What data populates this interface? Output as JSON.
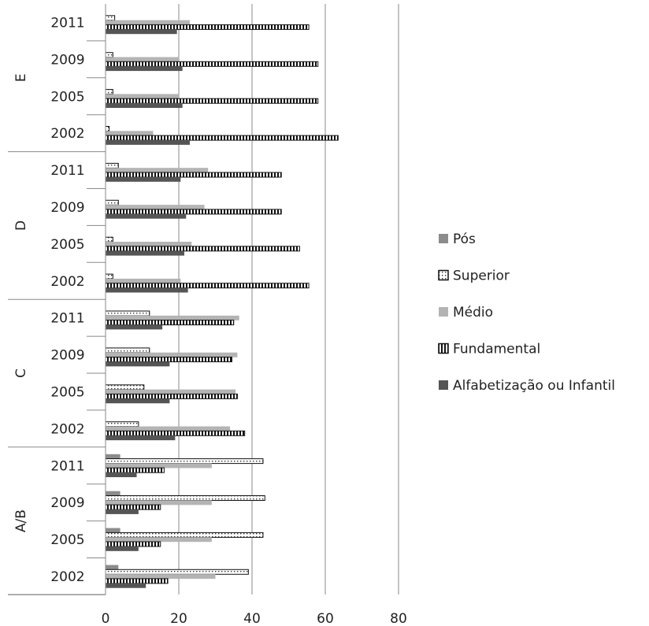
{
  "chart_data": {
    "type": "bar",
    "orientation": "horizontal",
    "groups": [
      {
        "label": "E",
        "years": [
          {
            "year": "2011",
            "values": [
              0,
              2.5,
              23,
              55.5,
              19.5
            ]
          },
          {
            "year": "2009",
            "values": [
              0,
              2,
              20,
              58,
              21
            ]
          },
          {
            "year": "2005",
            "values": [
              0,
              2,
              20,
              58,
              21
            ]
          },
          {
            "year": "2002",
            "values": [
              0,
              1,
              13,
              63.5,
              23
            ]
          }
        ]
      },
      {
        "label": "D",
        "years": [
          {
            "year": "2011",
            "values": [
              0,
              3.5,
              28,
              48,
              20.5
            ]
          },
          {
            "year": "2009",
            "values": [
              0,
              3.5,
              27,
              48,
              22
            ]
          },
          {
            "year": "2005",
            "values": [
              0,
              2,
              23.5,
              53,
              21.5
            ]
          },
          {
            "year": "2002",
            "values": [
              0,
              2,
              20.5,
              55.5,
              22.5
            ]
          }
        ]
      },
      {
        "label": "C",
        "years": [
          {
            "year": "2011",
            "values": [
              0,
              12,
              36.5,
              35,
              15.5
            ]
          },
          {
            "year": "2009",
            "values": [
              0,
              12,
              36,
              34.5,
              17.5
            ]
          },
          {
            "year": "2005",
            "values": [
              0,
              10.5,
              35.5,
              36,
              17.5
            ]
          },
          {
            "year": "2002",
            "values": [
              0,
              9,
              34,
              38,
              19
            ]
          }
        ]
      },
      {
        "label": "A/B",
        "years": [
          {
            "year": "2011",
            "values": [
              4,
              43,
              29,
              16,
              8.5
            ]
          },
          {
            "year": "2009",
            "values": [
              4,
              43.5,
              29,
              15,
              9
            ]
          },
          {
            "year": "2005",
            "values": [
              4,
              43,
              29,
              15,
              9
            ]
          },
          {
            "year": "2002",
            "values": [
              3.5,
              39,
              30,
              17,
              11
            ]
          }
        ]
      }
    ],
    "series": [
      {
        "name": "Pós",
        "color": "#8c8c8c",
        "pattern": "solid"
      },
      {
        "name": "Superior",
        "color": "#ffffff",
        "pattern": "dots"
      },
      {
        "name": "Médio",
        "color": "#b4b4b4",
        "pattern": "solid"
      },
      {
        "name": "Fundamental",
        "color": "#ffffff",
        "pattern": "vstripes"
      },
      {
        "name": "Alfabetização ou Infantil",
        "color": "#555555",
        "pattern": "solid"
      }
    ],
    "xlim": [
      0,
      80
    ],
    "xticks": [
      "0",
      "20",
      "40",
      "60",
      "80"
    ],
    "grid": true,
    "legend_position": "right"
  }
}
